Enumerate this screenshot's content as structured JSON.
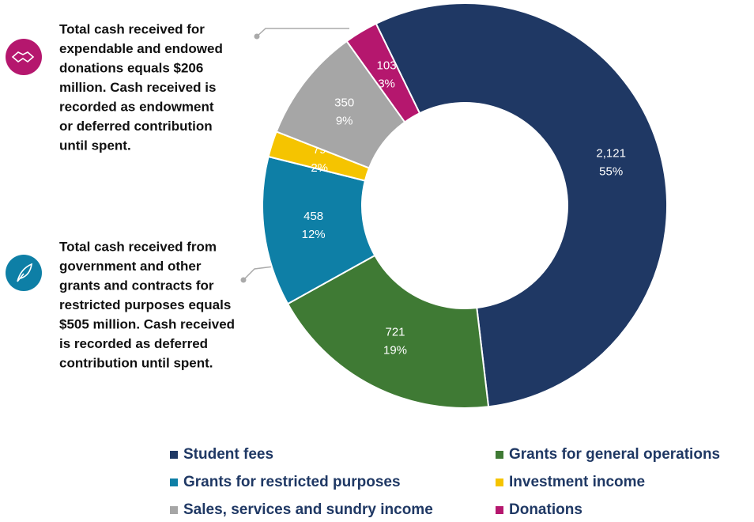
{
  "chart_data": {
    "type": "donut",
    "categories": [
      "Student fees",
      "Grants for general operations",
      "Grants for restricted purposes",
      "Investment income",
      "Sales, services and sundry income",
      "Donations"
    ],
    "values": [
      2121,
      721,
      458,
      79,
      350,
      103
    ],
    "value_labels": [
      "2,121",
      "721",
      "458",
      "79",
      "350",
      "103"
    ],
    "percentages": [
      55,
      19,
      12,
      2,
      9,
      3
    ],
    "percentage_labels": [
      "55%",
      "19%",
      "12%",
      "2%",
      "9%",
      "3%"
    ],
    "colors": [
      "#1f3864",
      "#3f7a34",
      "#0e7fa6",
      "#f5c400",
      "#a6a6a6",
      "#b5176e"
    ],
    "annotations": [
      {
        "lines": [
          "Total cash received for",
          "expendable and endowed",
          "donations equals $206",
          "million. Cash received is",
          "recorded as endowment",
          "or deferred contribution",
          "until spent."
        ]
      },
      {
        "lines": [
          "Total cash received from",
          "government and other",
          "grants and contracts for",
          "restricted purposes equals",
          "$505 million. Cash received",
          "is recorded as deferred",
          "contribution until spent."
        ]
      }
    ]
  }
}
